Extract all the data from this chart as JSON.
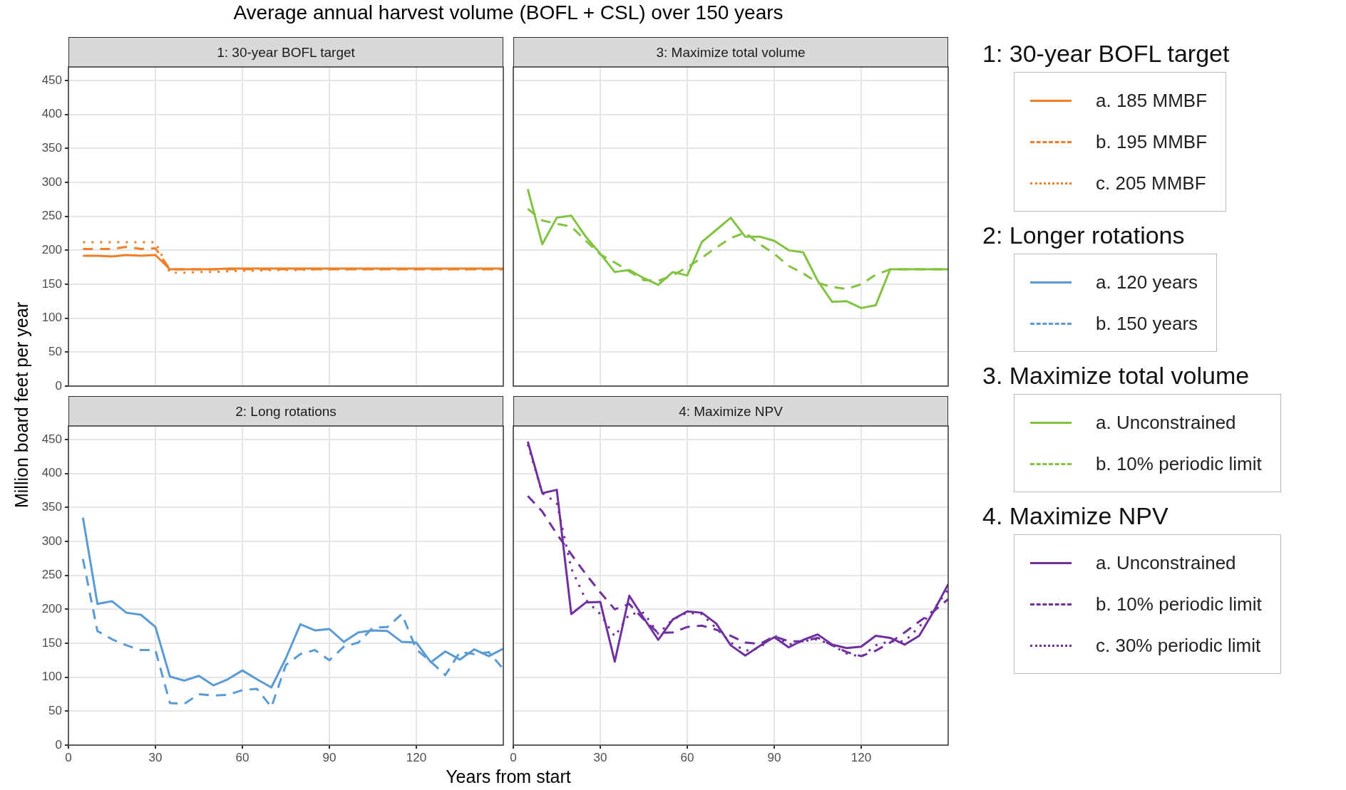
{
  "chart_data": [
    {
      "type": "line",
      "title": "1: 30-year BOFL target",
      "annotations": [
        "Average annual harvest volume (BOFL + CSL) over 150 years"
      ],
      "ylabel": "Million board feet per year",
      "legend_title": "1: 30-year BOFL target",
      "legend": "right",
      "grid": true,
      "tick_labels": "y",
      "xlim": [
        0,
        150
      ],
      "xticks": [
        0,
        30,
        60,
        90,
        120
      ],
      "ylim": [
        0,
        470
      ],
      "yticks": [
        0,
        50,
        100,
        150,
        200,
        250,
        300,
        350,
        400,
        450
      ],
      "x": [
        5,
        10,
        15,
        20,
        25,
        30,
        35,
        40,
        45,
        50,
        55,
        60,
        65,
        70,
        75,
        80,
        85,
        90,
        95,
        100,
        105,
        110,
        115,
        120,
        125,
        130,
        135,
        140,
        145,
        150
      ],
      "series": [
        {
          "name": "a. 185 MMBF",
          "color": "#f07f2a",
          "line_style": "solid",
          "values": [
            192,
            192,
            191,
            193,
            192,
            193,
            172,
            172,
            172,
            172,
            173,
            173,
            173,
            173,
            173,
            173,
            173,
            173,
            173,
            173,
            173,
            173,
            173,
            173,
            173,
            173,
            173,
            173,
            173,
            173
          ]
        },
        {
          "name": "b. 195 MMBF",
          "color": "#f07f2a",
          "line_style": "dashed",
          "values": [
            202,
            202,
            202,
            205,
            202,
            203,
            172,
            172,
            172,
            172,
            172,
            172,
            172,
            172,
            172,
            172,
            172,
            172,
            172,
            172,
            172,
            172,
            172,
            172,
            172,
            172,
            172,
            172,
            172,
            172
          ]
        },
        {
          "name": "c. 205 MMBF",
          "color": "#f07f2a",
          "line_style": "dotted",
          "values": [
            212,
            212,
            212,
            212,
            212,
            212,
            167,
            167,
            168,
            168,
            169,
            170,
            170,
            171,
            171,
            171,
            172,
            172,
            172,
            172,
            172,
            172,
            172,
            172,
            172,
            172,
            172,
            172,
            172,
            172
          ]
        }
      ]
    },
    {
      "type": "line",
      "title": "3: Maximize total volume",
      "legend_title": "3. Maximize total volume",
      "legend": "right",
      "grid": true,
      "tick_labels": false,
      "xlim": [
        0,
        150
      ],
      "xticks": [
        0,
        30,
        60,
        90,
        120
      ],
      "ylim": [
        0,
        470
      ],
      "yticks": [
        0,
        50,
        100,
        150,
        200,
        250,
        300,
        350,
        400,
        450
      ],
      "x": [
        5,
        10,
        15,
        20,
        25,
        30,
        35,
        40,
        45,
        50,
        55,
        60,
        65,
        70,
        75,
        80,
        85,
        90,
        95,
        100,
        105,
        110,
        115,
        120,
        125,
        130,
        135,
        140,
        145,
        150
      ],
      "series": [
        {
          "name": "a. Unconstrained",
          "color": "#82c341",
          "line_style": "solid",
          "values": [
            290,
            209,
            248,
            251,
            220,
            195,
            168,
            171,
            159,
            149,
            168,
            163,
            212,
            230,
            248,
            220,
            220,
            214,
            200,
            197,
            155,
            124,
            125,
            115,
            119,
            172,
            172,
            172,
            172,
            172
          ]
        },
        {
          "name": "b. 10% periodic limit",
          "color": "#82c341",
          "line_style": "dashed",
          "values": [
            261,
            244,
            239,
            235,
            214,
            194,
            182,
            169,
            156,
            155,
            163,
            175,
            189,
            204,
            218,
            226,
            209,
            195,
            177,
            166,
            152,
            146,
            143,
            150,
            164,
            172,
            172,
            172,
            172,
            172
          ]
        }
      ]
    },
    {
      "type": "line",
      "title": "2: Long rotations",
      "xlabel": "Years from start",
      "legend_title": "2: Longer rotations",
      "legend": "right",
      "grid": true,
      "xlim": [
        0,
        150
      ],
      "xticks": [
        0,
        30,
        60,
        90,
        120
      ],
      "ylim": [
        0,
        470
      ],
      "yticks": [
        0,
        50,
        100,
        150,
        200,
        250,
        300,
        350,
        400,
        450
      ],
      "x": [
        5,
        10,
        15,
        20,
        25,
        30,
        35,
        40,
        45,
        50,
        55,
        60,
        65,
        70,
        75,
        80,
        85,
        90,
        95,
        100,
        105,
        110,
        115,
        120,
        125,
        130,
        135,
        140,
        145,
        150
      ],
      "series": [
        {
          "name": "a. 120 years",
          "color": "#5b9bd5",
          "line_style": "solid",
          "values": [
            335,
            208,
            212,
            195,
            192,
            174,
            101,
            95,
            102,
            88,
            97,
            110,
            97,
            85,
            128,
            178,
            169,
            171,
            152,
            166,
            169,
            168,
            152,
            151,
            122,
            138,
            126,
            141,
            131,
            142
          ]
        },
        {
          "name": "b. 150 years",
          "color": "#5b9bd5",
          "line_style": "dashed",
          "values": [
            274,
            168,
            156,
            147,
            140,
            140,
            62,
            61,
            75,
            73,
            74,
            81,
            83,
            56,
            118,
            134,
            140,
            125,
            145,
            151,
            173,
            174,
            193,
            141,
            123,
            103,
            137,
            134,
            137,
            112
          ]
        }
      ]
    },
    {
      "type": "line",
      "title": "4: Maximize NPV",
      "legend_title": "4. Maximize NPV",
      "legend": "right",
      "grid": true,
      "tick_labels": "x",
      "xlim": [
        0,
        150
      ],
      "xticks": [
        0,
        30,
        60,
        90,
        120
      ],
      "ylim": [
        0,
        470
      ],
      "yticks": [
        0,
        50,
        100,
        150,
        200,
        250,
        300,
        350,
        400,
        450
      ],
      "x": [
        5,
        10,
        15,
        20,
        25,
        30,
        35,
        40,
        45,
        50,
        55,
        60,
        65,
        70,
        75,
        80,
        85,
        90,
        95,
        100,
        105,
        110,
        115,
        120,
        125,
        130,
        135,
        140,
        145,
        150
      ],
      "series": [
        {
          "name": "a. Unconstrained",
          "color": "#7030a0",
          "line_style": "solid",
          "values": [
            447,
            371,
            376,
            193,
            210,
            211,
            123,
            220,
            187,
            155,
            185,
            197,
            195,
            179,
            147,
            132,
            146,
            159,
            144,
            155,
            163,
            148,
            143,
            145,
            161,
            158,
            148,
            161,
            197,
            237
          ]
        },
        {
          "name": "b. 10% periodic limit",
          "color": "#7030a0",
          "line_style": "dashed",
          "values": [
            367,
            344,
            311,
            281,
            252,
            225,
            200,
            208,
            185,
            165,
            166,
            174,
            176,
            170,
            161,
            151,
            149,
            160,
            153,
            153,
            158,
            147,
            137,
            131,
            139,
            151,
            166,
            182,
            197,
            215
          ]
        },
        {
          "name": "c. 30% periodic limit",
          "color": "#7030a0",
          "line_style": "dotted",
          "values": [
            443,
            371,
            357,
            260,
            214,
            193,
            160,
            193,
            195,
            164,
            185,
            195,
            193,
            172,
            151,
            139,
            143,
            162,
            148,
            153,
            156,
            147,
            135,
            130,
            147,
            153,
            153,
            174,
            200,
            229
          ]
        }
      ]
    }
  ]
}
